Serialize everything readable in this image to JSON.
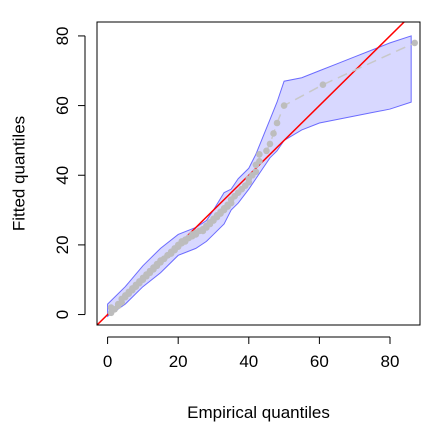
{
  "chart_data": {
    "type": "scatter",
    "title": "",
    "xlabel": "Empirical quantiles",
    "ylabel": "Fitted quantiles",
    "xlim": [
      -3,
      88.5
    ],
    "ylim": [
      -3,
      84
    ],
    "x_ticks": [
      0,
      20,
      40,
      60,
      80
    ],
    "y_ticks": [
      0,
      20,
      40,
      60,
      80
    ],
    "grid": false,
    "legend": "none",
    "colors": {
      "points": "#bdbdbd",
      "fitted_line": "#c8c8c8",
      "reference_line": "#ff0000",
      "band_fill": "#d8d8ff",
      "band_stroke": "#6b6bff"
    },
    "points": {
      "x": [
        1,
        1,
        2,
        3,
        3,
        4,
        4,
        5,
        5,
        6,
        6,
        7,
        7,
        8,
        8,
        9,
        9,
        10,
        10,
        11,
        11,
        12,
        12,
        13,
        13,
        14,
        14,
        15,
        15,
        16,
        16,
        17,
        17,
        18,
        18,
        19,
        19,
        20,
        20,
        21,
        21,
        22,
        22,
        23,
        23,
        24,
        24,
        25,
        25,
        26,
        27,
        27,
        28,
        28,
        29,
        29,
        30,
        30,
        31,
        31,
        32,
        32,
        33,
        33,
        34,
        34,
        35,
        35,
        36,
        37,
        38,
        39,
        40,
        40,
        41,
        42,
        42,
        43,
        43,
        45,
        46,
        47,
        48,
        50,
        61,
        87
      ],
      "y": [
        0.5,
        2,
        1.5,
        2.5,
        3,
        3.5,
        4.5,
        5,
        5.5,
        6,
        6.5,
        7,
        7.5,
        8,
        8.5,
        9,
        9.5,
        10,
        10.5,
        11,
        11.5,
        12,
        12.5,
        13,
        13.5,
        14,
        14.5,
        15,
        15.5,
        16,
        16,
        17,
        17,
        17.5,
        18,
        18.5,
        19,
        19.5,
        20,
        20.5,
        21,
        21,
        21.5,
        22,
        22,
        22.5,
        23,
        23,
        23.5,
        24,
        24,
        24.5,
        25,
        25.5,
        26,
        26.5,
        27,
        27.5,
        28,
        28.5,
        29,
        29.5,
        30,
        30.5,
        31,
        31.5,
        32,
        33,
        34,
        35,
        36,
        37,
        38,
        39,
        40,
        41,
        43,
        44,
        46,
        47,
        49,
        52,
        55,
        60,
        66,
        78
      ]
    },
    "band": {
      "upper": {
        "x": [
          0,
          5,
          10,
          15,
          20,
          25,
          28,
          30,
          33,
          35,
          37,
          40,
          42,
          44,
          46,
          48,
          50,
          55,
          60,
          65,
          70,
          75,
          80,
          86
        ],
        "y": [
          3,
          8,
          14,
          19,
          23,
          25,
          27,
          30,
          35,
          36,
          39,
          42,
          46,
          51,
          56,
          61,
          67,
          68,
          70,
          72,
          74,
          76,
          78,
          80
        ]
      },
      "lower": {
        "x": [
          0,
          5,
          10,
          15,
          20,
          25,
          28,
          30,
          33,
          35,
          37,
          40,
          42,
          44,
          46,
          48,
          50,
          55,
          60,
          65,
          70,
          75,
          80,
          86
        ],
        "y": [
          -0.5,
          3,
          8,
          12,
          17,
          19,
          21,
          23,
          26,
          30,
          32,
          36,
          39,
          42,
          45,
          47,
          50,
          53,
          55,
          56,
          57,
          58,
          59,
          61
        ]
      }
    },
    "reference_line": {
      "slope": 1,
      "intercept": 0
    }
  }
}
